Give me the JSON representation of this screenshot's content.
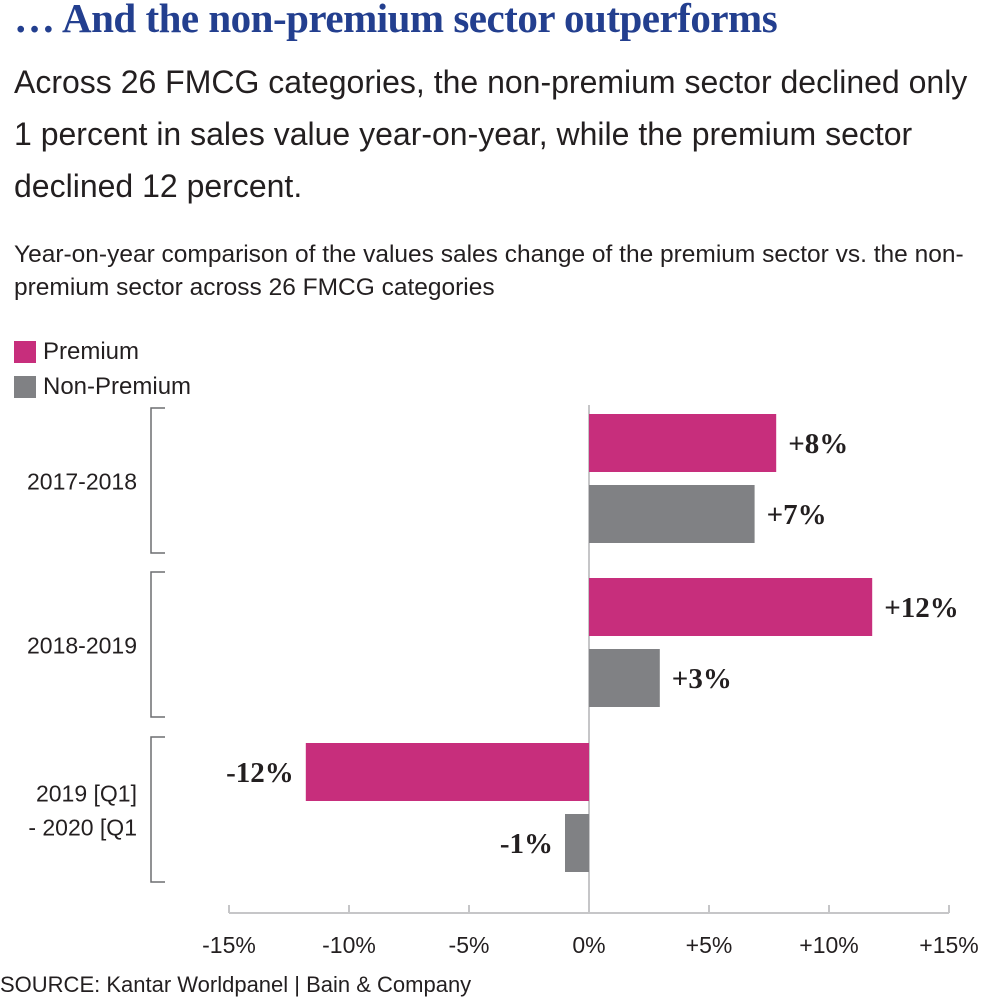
{
  "headline": "… And the non-premium sector outperforms",
  "dek": "Across 26 FMCG categories, the non-premium sector declined only 1 percent in sales value year-on-year, while the premium sector declined 12 percent.",
  "source": "SOURCE: Kantar Worldpanel | Bain & Company",
  "colors": {
    "headline": "#233f8f",
    "premium": "#c72e7c",
    "non_premium": "#808184",
    "axis": "#c6c6c8",
    "bracket": "#6d6e71"
  },
  "chart_data": {
    "type": "bar",
    "orientation": "horizontal",
    "title": "Year-on-year comparison of the values sales change of the premium sector vs. the non-premium sector across 26 FMCG categories",
    "xlabel": "",
    "ylabel": "",
    "xlim": [
      -15,
      15
    ],
    "x_ticks": [
      -15,
      -10,
      -5,
      0,
      5,
      10,
      15
    ],
    "x_tick_labels": [
      "-15%",
      "-10%",
      "-5%",
      "0%",
      "+5%",
      "+10%",
      "+15%"
    ],
    "categories": [
      {
        "label_lines": [
          "2017-2018"
        ]
      },
      {
        "label_lines": [
          "2018-2019"
        ]
      },
      {
        "label_lines": [
          "2019 [Q1]",
          "- 2020 [Q1"
        ]
      }
    ],
    "series": [
      {
        "name": "Premium",
        "color": "#c72e7c",
        "values": [
          7.8,
          11.8,
          -11.8
        ],
        "labels": [
          "+8%",
          "+12%",
          "-12%"
        ]
      },
      {
        "name": "Non-Premium",
        "color": "#808184",
        "values": [
          6.9,
          2.95,
          -1.0
        ],
        "labels": [
          "+7%",
          "+3%",
          "-1%"
        ]
      }
    ],
    "legend": {
      "position": "top-left",
      "entries": [
        "Premium",
        "Non-Premium"
      ]
    },
    "grid": false
  }
}
